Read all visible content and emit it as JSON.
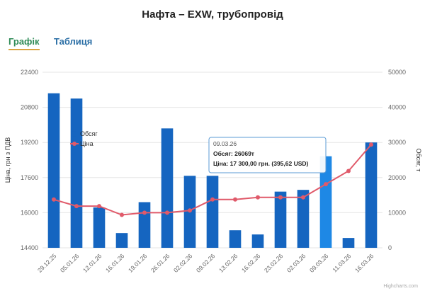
{
  "page": {
    "title": "Нафта – EXW, трубопровід"
  },
  "tabs": [
    {
      "label": "Графік",
      "active": true
    },
    {
      "label": "Таблиця",
      "active": false
    }
  ],
  "tooltip": {
    "date": "09.03.26",
    "volume_line": "Обсяг: 26069т",
    "price_line": "Ціна: 17 300,00 грн. (395,62 USD)"
  },
  "credit": "Highcharts.com",
  "colors": {
    "bar": "#1565c0",
    "bar_highlight": "#1e88e5",
    "line": "#e05a6a",
    "grid": "#e6e6e6",
    "axis_text": "#666666"
  },
  "chart_data": {
    "type": "bar",
    "categories": [
      "29.12.25",
      "05.01.26",
      "12.01.26",
      "16.01.26",
      "19.01.26",
      "26.01.26",
      "02.02.26",
      "09.02.26",
      "13.02.26",
      "16.02.26",
      "23.02.26",
      "02.03.26",
      "09.03.26",
      "11.03.26",
      "16.03.26"
    ],
    "series": [
      {
        "name": "Обсяг",
        "type": "bar",
        "axis": "right",
        "values": [
          44000,
          42500,
          11500,
          4200,
          13000,
          34000,
          20500,
          20500,
          5000,
          3800,
          16000,
          16500,
          26069,
          2800,
          30000
        ]
      },
      {
        "name": "Ціна",
        "type": "line",
        "axis": "left",
        "values": [
          16600,
          16300,
          16300,
          15900,
          16000,
          16000,
          16100,
          16600,
          16600,
          16700,
          16700,
          16700,
          17300,
          17900,
          19100
        ]
      }
    ],
    "ylabel_left": "Ціна, грн з ПДВ",
    "ylabel_right": "Обсяг, т",
    "ylim_left": [
      14400,
      22400
    ],
    "ylim_right": [
      0,
      50000
    ],
    "yticks_left": [
      "14400",
      "16000",
      "17600",
      "19200",
      "20800",
      "22400"
    ],
    "yticks_right": [
      "0",
      "10000",
      "20000",
      "30000",
      "40000",
      "50000"
    ],
    "legend_position": "left",
    "grid": true,
    "highlighted_index": 12
  }
}
